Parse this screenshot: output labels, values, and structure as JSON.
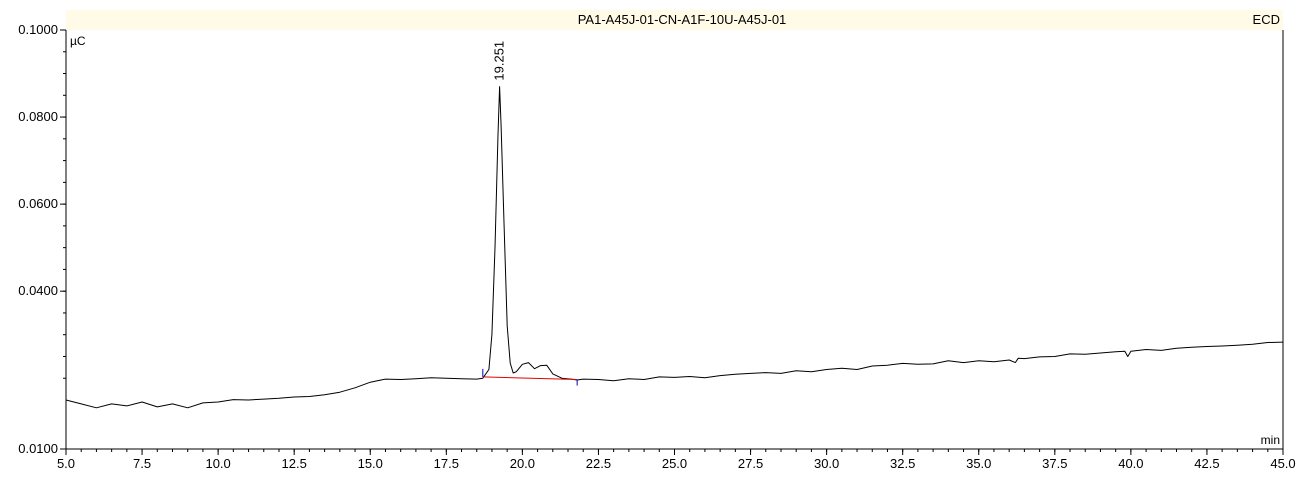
{
  "header": {
    "sample_name": "PA1-A45J-01-CN-A1F-10U-A45J-01",
    "detector": "ECD",
    "band_color": "#fffbe6"
  },
  "chart_data": {
    "type": "line",
    "title": "PA1-A45J-01-CN-A1F-10U-A45J-01",
    "xlabel": "min",
    "ylabel": "µC",
    "xlim": [
      5.0,
      45.0
    ],
    "ylim": [
      0.01,
      0.1
    ],
    "x_ticks": [
      5.0,
      7.5,
      10.0,
      12.5,
      15.0,
      17.5,
      20.0,
      22.5,
      25.0,
      27.5,
      30.0,
      32.5,
      35.0,
      37.5,
      40.0,
      42.5,
      45.0
    ],
    "x_tick_labels": [
      "5.0",
      "7.5",
      "10.0",
      "12.5",
      "15.0",
      "17.5",
      "20.0",
      "22.5",
      "25.0",
      "27.5",
      "30.0",
      "32.5",
      "35.0",
      "37.5",
      "40.0",
      "42.5",
      "45.0"
    ],
    "y_ticks": [
      0.01,
      0.04,
      0.06,
      0.08,
      0.1
    ],
    "y_tick_labels": [
      "0.0100",
      "0.0400",
      "0.0600",
      "0.0800",
      "0.1000"
    ],
    "grid": false,
    "legend": "none",
    "line_color": "#000000",
    "baseline_color": "#e60000",
    "marker_color": "#0000cc",
    "series": [
      {
        "x": [
          5.0,
          5.5,
          6.0,
          6.5,
          7.0,
          7.5,
          8.0,
          8.5,
          9.0,
          9.5,
          10.0,
          10.5,
          11.0,
          11.5,
          12.0,
          12.5,
          13.0,
          13.5,
          14.0,
          14.5,
          15.0,
          15.5,
          16.0,
          16.5,
          17.0,
          17.5,
          18.0,
          18.5,
          18.7,
          18.9,
          19.0,
          19.1,
          19.2,
          19.251,
          19.3,
          19.4,
          19.5,
          19.6,
          19.7,
          19.8,
          20.0,
          20.2,
          20.4,
          20.6,
          20.8,
          21.0,
          21.3,
          21.6,
          21.8,
          22.0,
          22.5,
          23.0,
          23.5,
          24.0,
          24.5,
          25.0,
          25.5,
          26.0,
          26.5,
          27.0,
          27.5,
          28.0,
          28.5,
          29.0,
          29.5,
          30.0,
          30.5,
          31.0,
          31.5,
          32.0,
          32.5,
          33.0,
          33.5,
          34.0,
          34.5,
          35.0,
          35.5,
          36.0,
          36.2,
          36.3,
          36.5,
          37.0,
          37.5,
          38.0,
          38.5,
          39.0,
          39.5,
          39.8,
          39.9,
          40.0,
          40.5,
          41.0,
          41.5,
          42.0,
          42.5,
          43.0,
          43.5,
          44.0,
          44.5,
          45.0
        ],
        "y": [
          0.015,
          0.0146,
          0.0142,
          0.0146,
          0.0144,
          0.0148,
          0.0143,
          0.0146,
          0.0142,
          0.0147,
          0.0148,
          0.0151,
          0.015,
          0.0152,
          0.0154,
          0.0157,
          0.0158,
          0.0162,
          0.0168,
          0.0178,
          0.0191,
          0.0198,
          0.0197,
          0.0199,
          0.0201,
          0.02,
          0.0199,
          0.0198,
          0.02,
          0.022,
          0.03,
          0.05,
          0.076,
          0.087,
          0.078,
          0.055,
          0.032,
          0.0235,
          0.0212,
          0.0215,
          0.0232,
          0.0236,
          0.0222,
          0.0229,
          0.023,
          0.021,
          0.02,
          0.0198,
          0.0196,
          0.0198,
          0.0197,
          0.0194,
          0.0199,
          0.0197,
          0.0203,
          0.0202,
          0.0204,
          0.0201,
          0.0206,
          0.0209,
          0.0211,
          0.0213,
          0.0211,
          0.0217,
          0.0215,
          0.022,
          0.0223,
          0.022,
          0.0228,
          0.023,
          0.0234,
          0.0232,
          0.0233,
          0.024,
          0.0236,
          0.024,
          0.0238,
          0.0242,
          0.0236,
          0.0246,
          0.0245,
          0.0249,
          0.025,
          0.0256,
          0.0255,
          0.0258,
          0.0261,
          0.0262,
          0.025,
          0.0262,
          0.0266,
          0.0264,
          0.0269,
          0.0271,
          0.0273,
          0.0274,
          0.0276,
          0.0278,
          0.0282,
          0.0283
        ]
      }
    ],
    "peaks": [
      {
        "label": "19.251",
        "x": 19.251,
        "y": 0.087
      }
    ],
    "baseline": {
      "start": [
        18.7,
        0.0203
      ],
      "end": [
        21.8,
        0.0197
      ]
    }
  }
}
